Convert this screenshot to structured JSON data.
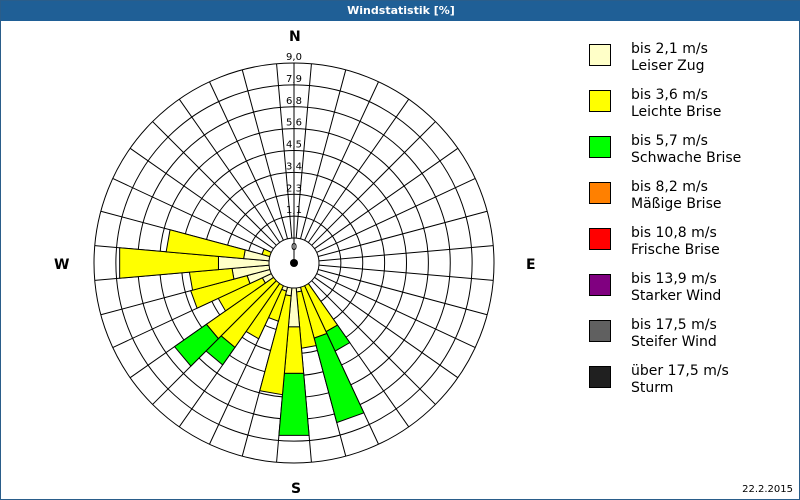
{
  "window": {
    "title": "Windstatistik [%]"
  },
  "compass": {
    "n": "N",
    "e": "E",
    "s": "S",
    "w": "W"
  },
  "footer": {
    "date": "22.2.2015"
  },
  "legend": [
    {
      "line1": "bis 2,1 m/s",
      "line2": "Leiser Zug",
      "color": "#ffffc8"
    },
    {
      "line1": "bis 3,6 m/s",
      "line2": "Leichte Brise",
      "color": "#ffff00"
    },
    {
      "line1": "bis 5,7 m/s",
      "line2": "Schwache Brise",
      "color": "#00ff00"
    },
    {
      "line1": "bis 8,2 m/s",
      "line2": "Mäßige Brise",
      "color": "#ff8000"
    },
    {
      "line1": "bis 10,8 m/s",
      "line2": "Frische Brise",
      "color": "#ff0000"
    },
    {
      "line1": "bis 13,9 m/s",
      "line2": "Starker Wind",
      "color": "#800080"
    },
    {
      "line1": "bis 17,5 m/s",
      "line2": "Steifer Wind",
      "color": "#606060"
    },
    {
      "line1": "über 17,5 m/s",
      "line2": "Sturm",
      "color": "#202020"
    }
  ],
  "chart_data": {
    "type": "wind-rose (stacked polar bar)",
    "title": "Windstatistik [%]",
    "radial_unit": "%",
    "radial_ticks": [
      "0",
      "1,1",
      "2,3",
      "3,4",
      "4,5",
      "5,6",
      "6,8",
      "7,9",
      "9,0"
    ],
    "rmax": 9.0,
    "sector_width_deg": 10,
    "directions_deg": [
      0,
      10,
      20,
      30,
      40,
      50,
      60,
      70,
      80,
      90,
      100,
      110,
      120,
      130,
      140,
      150,
      160,
      170,
      180,
      190,
      200,
      210,
      220,
      230,
      240,
      250,
      260,
      270,
      280,
      290,
      300,
      310,
      320,
      330,
      340,
      350
    ],
    "series": [
      {
        "name": "bis 2,1 m/s (Leiser Zug)",
        "color": "#ffffc8",
        "values": [
          0.2,
          0,
          0,
          0,
          0,
          0,
          0,
          0,
          0,
          0,
          0,
          0,
          0,
          0,
          0,
          0.3,
          0.5,
          1.5,
          3.3,
          1.7,
          1.5,
          0.8,
          1.0,
          1.2,
          1.8,
          2.5,
          3.2,
          3.9,
          2.6,
          1.0,
          1.2,
          0.5,
          0.3,
          0.2,
          0,
          0
        ]
      },
      {
        "name": "bis 3,6 m/s (Leichte Brise)",
        "color": "#ffff00",
        "values": [
          0,
          0,
          0,
          0,
          0,
          0,
          0,
          0,
          0,
          0,
          0,
          0,
          0,
          0,
          0,
          3.6,
          3.5,
          2.9,
          2.4,
          5.1,
          1.6,
          3.5,
          4.3,
          4.3,
          2.5,
          3.0,
          2.2,
          5.1,
          4.0,
          0.7,
          0,
          0,
          0,
          0,
          0,
          0
        ]
      },
      {
        "name": "bis 5,7 m/s (Schwache Brise)",
        "color": "#00ff00",
        "values": [
          0,
          0,
          0,
          0,
          0,
          0,
          0,
          0,
          0,
          0,
          0,
          0,
          0,
          0,
          0,
          1.1,
          4.5,
          0,
          3.2,
          0,
          0,
          0,
          1.1,
          2.0,
          0,
          0,
          0,
          0,
          0,
          0,
          0,
          0,
          0,
          0,
          0,
          0
        ]
      },
      {
        "name": "bis 8,2 m/s (Mäßige Brise)",
        "color": "#ff8000",
        "values": [
          0,
          0,
          0,
          0,
          0,
          0,
          0,
          0,
          0,
          0,
          0,
          0,
          0,
          0,
          0,
          0,
          0,
          0,
          0,
          0,
          0,
          0,
          0,
          0,
          0,
          0,
          0,
          0,
          0,
          0,
          0,
          0,
          0,
          0,
          0,
          0
        ]
      },
      {
        "name": "bis 10,8 m/s (Frische Brise)",
        "color": "#ff0000",
        "values": [
          0,
          0,
          0,
          0,
          0,
          0,
          0,
          0,
          0,
          0,
          0,
          0,
          0,
          0,
          0,
          0,
          0,
          0,
          0,
          0,
          0,
          0,
          0,
          0,
          0,
          0,
          0,
          0,
          0,
          0,
          0,
          0,
          0,
          0,
          0,
          0
        ]
      },
      {
        "name": "bis 13,9 m/s (Starker Wind)",
        "color": "#800080",
        "values": [
          0,
          0,
          0,
          0,
          0,
          0,
          0,
          0,
          0,
          0,
          0,
          0,
          0,
          0,
          0,
          0,
          0,
          0,
          0,
          0,
          0,
          0,
          0,
          0,
          0,
          0,
          0,
          0,
          0,
          0,
          0,
          0,
          0,
          0,
          0,
          0
        ]
      },
      {
        "name": "bis 17,5 m/s (Steifer Wind)",
        "color": "#606060",
        "values": [
          0,
          0,
          0,
          0,
          0,
          0,
          0,
          0,
          0,
          0,
          0,
          0,
          0,
          0,
          0,
          0,
          0,
          0,
          0,
          0,
          0,
          0,
          0,
          0,
          0,
          0,
          0,
          0,
          0,
          0,
          0,
          0,
          0,
          0,
          0,
          0
        ]
      },
      {
        "name": "über 17,5 m/s (Sturm)",
        "color": "#202020",
        "values": [
          0,
          0,
          0,
          0,
          0,
          0,
          0,
          0,
          0,
          0,
          0,
          0,
          0,
          0,
          0,
          0,
          0,
          0,
          0,
          0,
          0,
          0,
          0,
          0,
          0,
          0,
          0,
          0,
          0,
          0,
          0,
          0,
          0,
          0,
          0,
          0
        ]
      }
    ],
    "legend_position": "right",
    "grid": true
  }
}
